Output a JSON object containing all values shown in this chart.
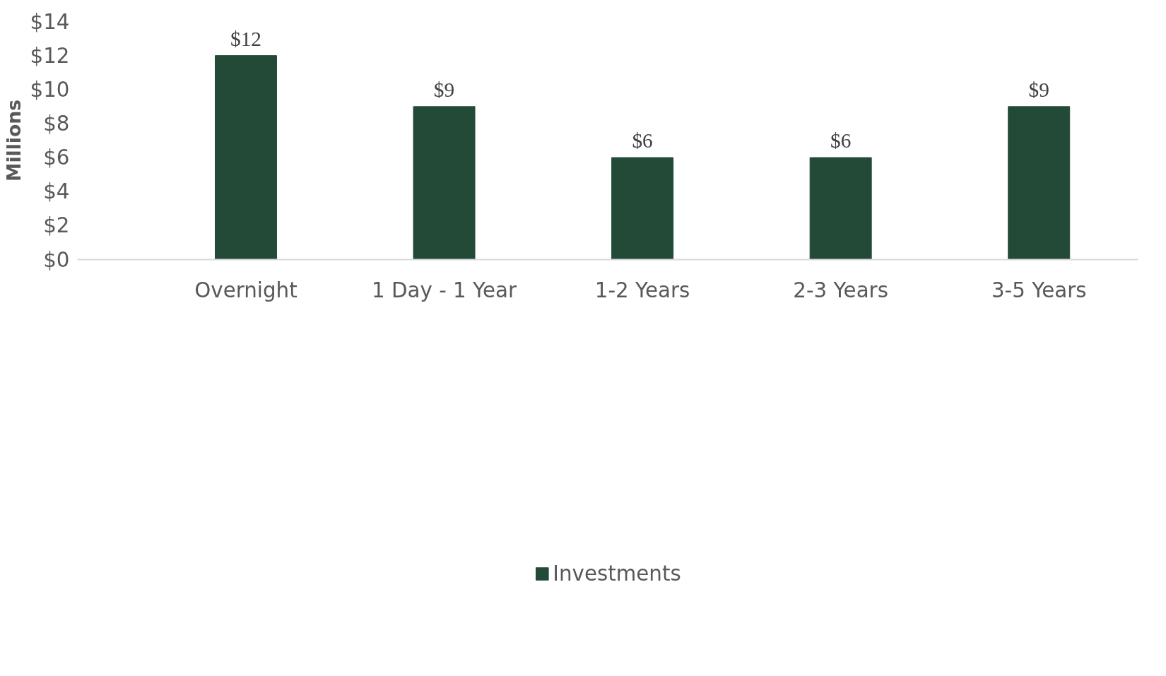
{
  "chart_data": {
    "type": "bar",
    "ylabel": "Millions",
    "categories": [
      "Overnight",
      "1 Day - 1 Year",
      "1-2 Years",
      "2-3 Years",
      "3-5 Years"
    ],
    "series": [
      {
        "name": "Investments",
        "color": "#224a37",
        "values": [
          12,
          9,
          6,
          6,
          9
        ],
        "value_labels": [
          "$12",
          "$9",
          "$6",
          "$6",
          "$9"
        ]
      }
    ],
    "ylim": [
      0,
      14
    ],
    "yticks": [
      {
        "value": 0,
        "label": "$0"
      },
      {
        "value": 2,
        "label": "$2"
      },
      {
        "value": 4,
        "label": "$4"
      },
      {
        "value": 6,
        "label": "$6"
      },
      {
        "value": 8,
        "label": "$8"
      },
      {
        "value": 10,
        "label": "$10"
      },
      {
        "value": 12,
        "label": "$12"
      },
      {
        "value": 14,
        "label": "$14"
      }
    ],
    "grid": false,
    "legend": "bottom"
  }
}
